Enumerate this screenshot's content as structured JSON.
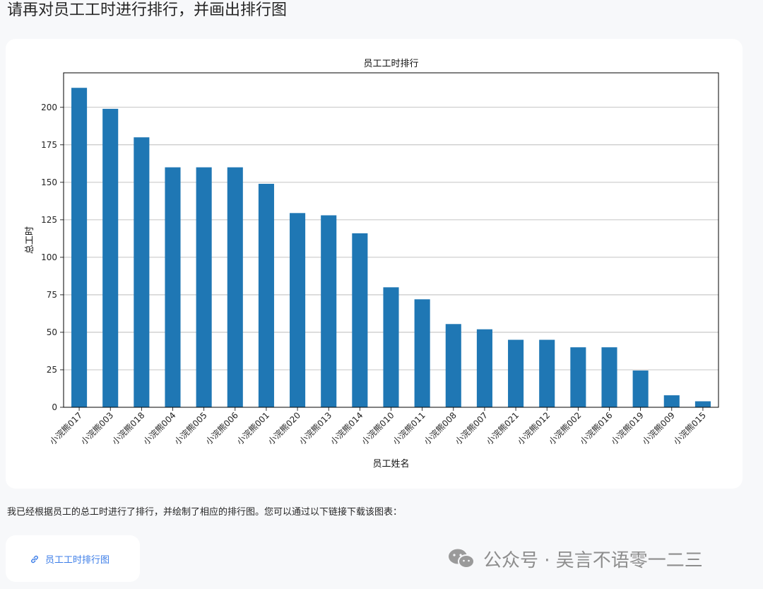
{
  "question": "请再对员工工时进行排行，并画出排行图",
  "answer": "我已经根据员工的总工时进行了排行，并绘制了相应的排行图。您可以通过以下链接下载该图表：",
  "link": {
    "label": "员工工时排行图",
    "icon": "link-icon"
  },
  "watermark": {
    "text": "公众号 · 吴言不语零一二三",
    "icon": "wechat-icon"
  },
  "colors": {
    "bar": "#1f77b4",
    "grid": "#b0b0b0",
    "link": "#3d7ee8"
  },
  "chart_data": {
    "type": "bar",
    "title": "员工工时排行",
    "xlabel": "员工姓名",
    "ylabel": "总工时",
    "ylim": [
      0,
      223
    ],
    "yticks": [
      0,
      25,
      50,
      75,
      100,
      125,
      150,
      175,
      200
    ],
    "grid": "y",
    "categories": [
      "小浣熊017",
      "小浣熊003",
      "小浣熊018",
      "小浣熊004",
      "小浣熊005",
      "小浣熊006",
      "小浣熊001",
      "小浣熊020",
      "小浣熊013",
      "小浣熊014",
      "小浣熊010",
      "小浣熊011",
      "小浣熊008",
      "小浣熊007",
      "小浣熊021",
      "小浣熊012",
      "小浣熊002",
      "小浣熊016",
      "小浣熊019",
      "小浣熊009",
      "小浣熊015"
    ],
    "values": [
      213,
      199,
      180,
      160,
      160,
      160,
      149,
      129.5,
      128,
      116,
      80,
      72,
      55.5,
      52,
      45,
      45,
      40,
      40,
      24.5,
      8,
      4
    ]
  }
}
